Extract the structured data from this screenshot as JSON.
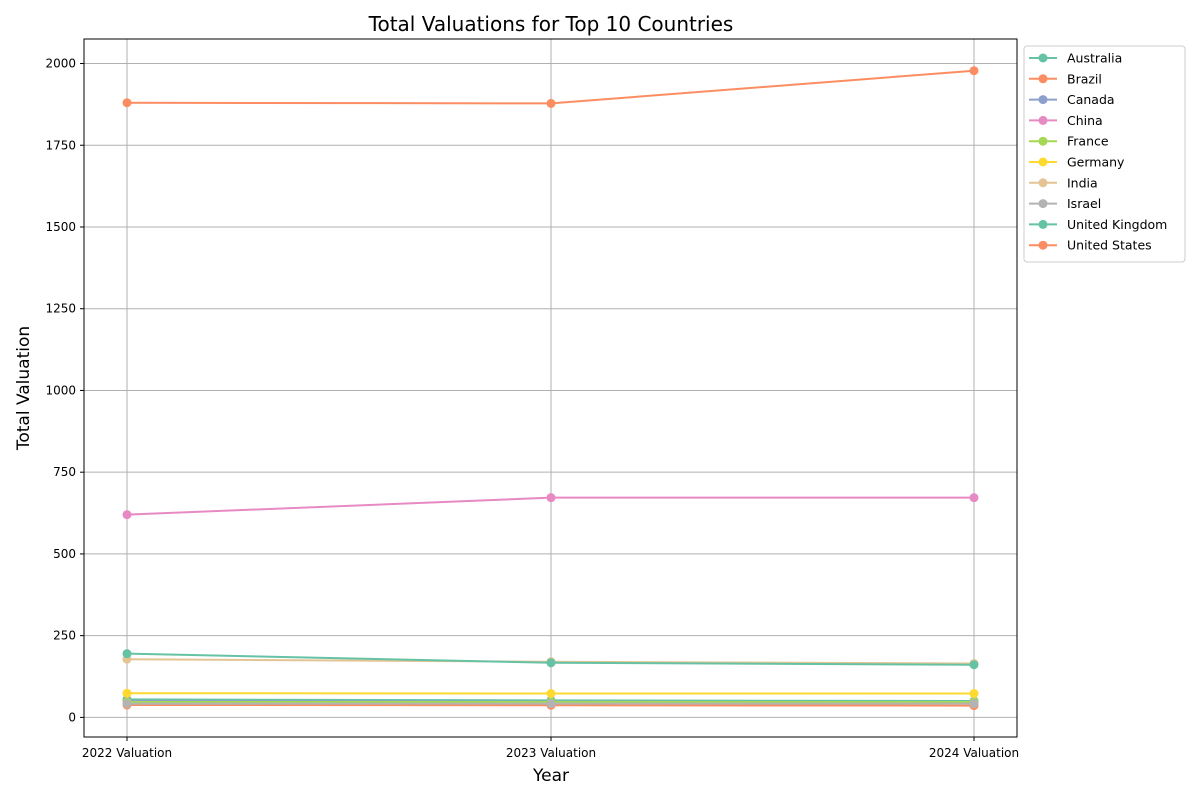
{
  "chart_data": {
    "type": "line",
    "title": "Total Valuations for Top 10 Countries",
    "xlabel": "Year",
    "ylabel": "Total Valuation",
    "categories": [
      "2022 Valuation",
      "2023 Valuation",
      "2024 Valuation"
    ],
    "ylim": [
      -60,
      2075
    ],
    "yticks": [
      0,
      250,
      500,
      750,
      1000,
      1250,
      1500,
      1750,
      2000
    ],
    "grid": true,
    "legend_position": "outside-top-right",
    "series": [
      {
        "name": "Australia",
        "color": "#66c2a5",
        "values": [
          55,
          52,
          50
        ]
      },
      {
        "name": "Brazil",
        "color": "#fc8d62",
        "values": [
          38,
          37,
          36
        ]
      },
      {
        "name": "Canada",
        "color": "#8da0cb",
        "values": [
          50,
          48,
          45
        ]
      },
      {
        "name": "China",
        "color": "#e78ac3",
        "values": [
          620,
          672,
          672
        ]
      },
      {
        "name": "France",
        "color": "#a6d854",
        "values": [
          47,
          47,
          47
        ]
      },
      {
        "name": "Germany",
        "color": "#ffd92f",
        "values": [
          74,
          73,
          73
        ]
      },
      {
        "name": "India",
        "color": "#e5c494",
        "values": [
          178,
          170,
          165
        ]
      },
      {
        "name": "Israel",
        "color": "#b3b3b3",
        "values": [
          42,
          42,
          42
        ]
      },
      {
        "name": "United Kingdom",
        "color": "#66c2a5",
        "values": [
          195,
          167,
          161
        ]
      },
      {
        "name": "United States",
        "color": "#fc8d62",
        "values": [
          1880,
          1878,
          1978
        ]
      }
    ]
  }
}
